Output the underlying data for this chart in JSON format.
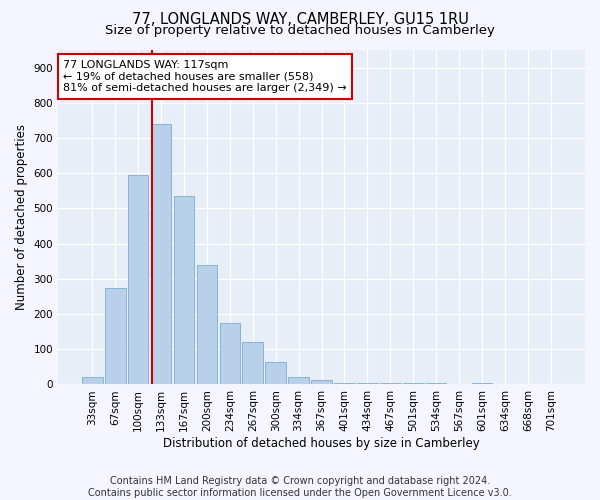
{
  "title": "77, LONGLANDS WAY, CAMBERLEY, GU15 1RU",
  "subtitle": "Size of property relative to detached houses in Camberley",
  "xlabel": "Distribution of detached houses by size in Camberley",
  "ylabel": "Number of detached properties",
  "categories": [
    "33sqm",
    "67sqm",
    "100sqm",
    "133sqm",
    "167sqm",
    "200sqm",
    "234sqm",
    "267sqm",
    "300sqm",
    "334sqm",
    "367sqm",
    "401sqm",
    "434sqm",
    "467sqm",
    "501sqm",
    "534sqm",
    "567sqm",
    "601sqm",
    "634sqm",
    "668sqm",
    "701sqm"
  ],
  "values": [
    20,
    275,
    595,
    740,
    535,
    340,
    175,
    120,
    65,
    20,
    12,
    5,
    5,
    5,
    5,
    5,
    0,
    5,
    0,
    0,
    0
  ],
  "bar_color": "#b8d0ea",
  "bar_edge_color": "#7aadd4",
  "vline_color": "#cc0000",
  "vline_pos": 2.62,
  "annotation_text": "77 LONGLANDS WAY: 117sqm\n← 19% of detached houses are smaller (558)\n81% of semi-detached houses are larger (2,349) →",
  "annotation_box_color": "#ffffff",
  "annotation_box_edge_color": "#cc0000",
  "ylim": [
    0,
    950
  ],
  "yticks": [
    0,
    100,
    200,
    300,
    400,
    500,
    600,
    700,
    800,
    900
  ],
  "footer_line1": "Contains HM Land Registry data © Crown copyright and database right 2024.",
  "footer_line2": "Contains public sector information licensed under the Open Government Licence v3.0.",
  "bg_color": "#e8eef8",
  "fig_bg_color": "#f5f5ff",
  "grid_color": "#ffffff",
  "title_fontsize": 10.5,
  "subtitle_fontsize": 9.5,
  "axis_label_fontsize": 8.5,
  "tick_fontsize": 7.5,
  "footer_fontsize": 7
}
